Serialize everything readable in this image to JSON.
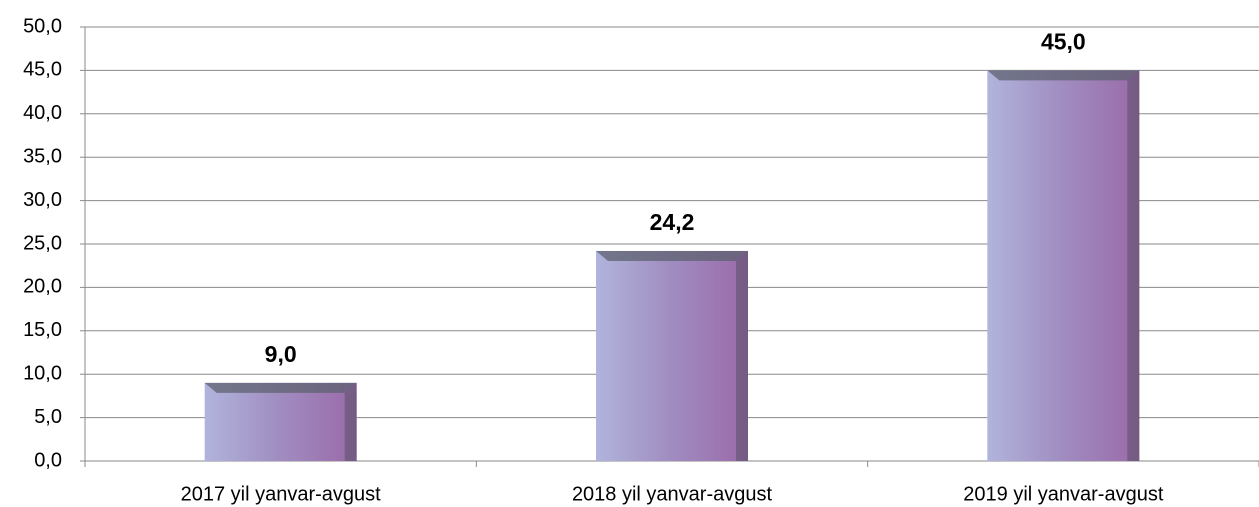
{
  "chart_data": {
    "type": "bar",
    "categories": [
      "2017 yil yanvar-avgust",
      "2018 yil yanvar-avgust",
      "2019 yil yanvar-avgust"
    ],
    "values": [
      9.0,
      24.2,
      45.0
    ],
    "value_labels": [
      "9,0",
      "24,2",
      "45,0"
    ],
    "color": "#a38bbf",
    "ylim": [
      0,
      50
    ],
    "yticks": [
      {
        "value": 0,
        "label": "0,0"
      },
      {
        "value": 5,
        "label": "5,0"
      },
      {
        "value": 10,
        "label": "10,0"
      },
      {
        "value": 15,
        "label": "15,0"
      },
      {
        "value": 20,
        "label": "20,0"
      },
      {
        "value": 25,
        "label": "25,0"
      },
      {
        "value": 30,
        "label": "30,0"
      },
      {
        "value": 35,
        "label": "35,0"
      },
      {
        "value": 40,
        "label": "40,0"
      },
      {
        "value": 45,
        "label": "45,0"
      },
      {
        "value": 50,
        "label": "50,0"
      }
    ],
    "grid": true
  }
}
